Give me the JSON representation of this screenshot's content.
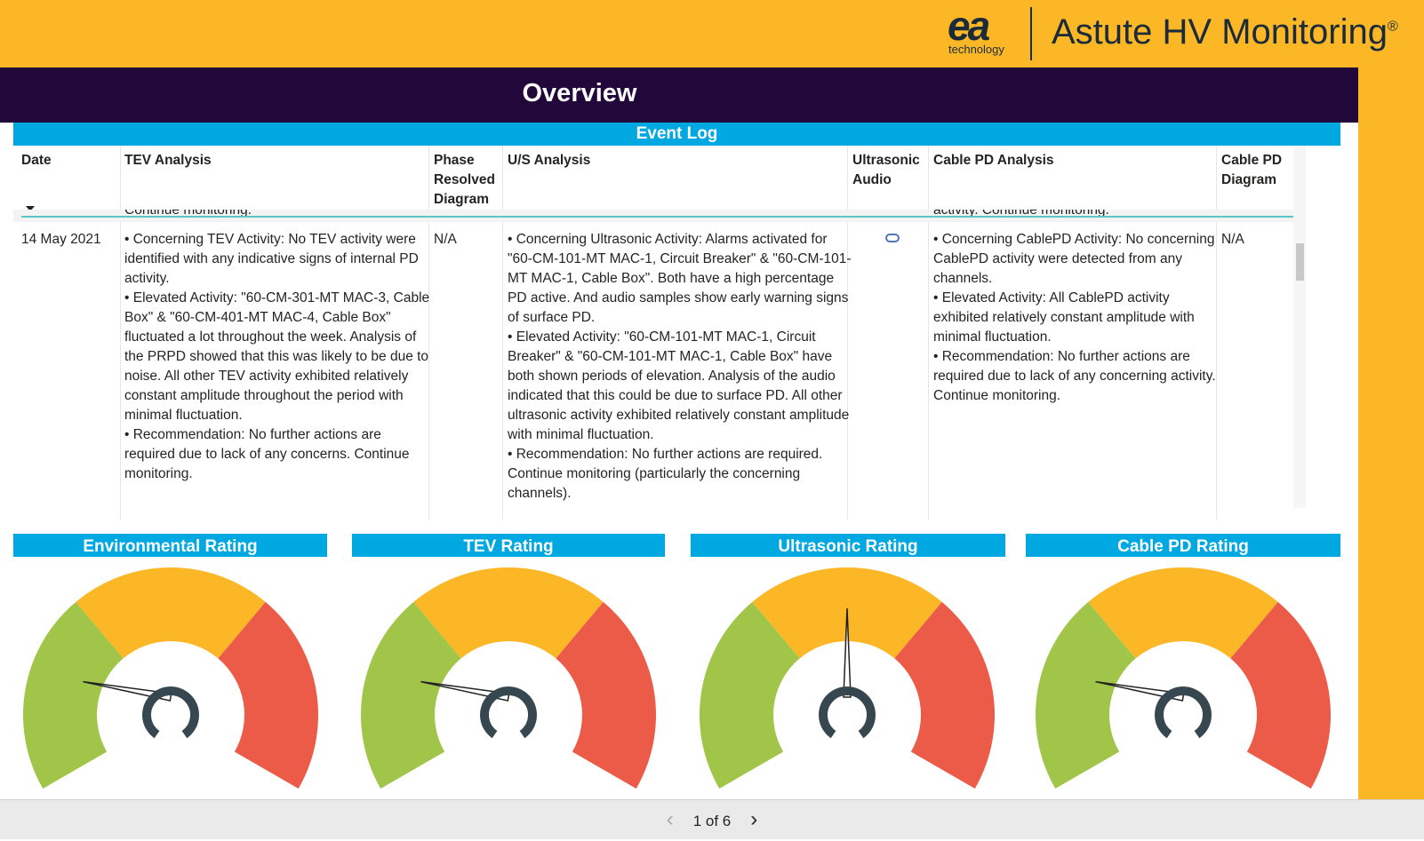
{
  "header": {
    "logo": "ea",
    "logo_sub": "technology",
    "product": "Astute HV Monitoring",
    "product_mark": "®"
  },
  "page": {
    "title": "Overview"
  },
  "event_log": {
    "title": "Event Log",
    "columns": [
      "Date",
      "TEV Analysis",
      "Phase Resolved Diagram",
      "U/S Analysis",
      "Ultrasonic Audio",
      "Cable PD Analysis",
      "Cable PD Diagram"
    ],
    "previous_row": {
      "tev": "Continue monitoring.",
      "cable": "activity. Continue monitoring."
    },
    "rows": [
      {
        "date": "14 May 2021",
        "tev": [
          "• Concerning TEV Activity: No TEV activity were identified with any indicative signs of internal PD activity.",
          "• Elevated Activity: \"60-CM-301-MT MAC-3, Cable Box\" & \"60-CM-401-MT MAC-4, Cable Box\" fluctuated a lot throughout the week. Analysis of the PRPD showed that this was likely to be due to noise. All other TEV activity exhibited relatively constant amplitude throughout the period with minimal fluctuation.",
          "• Recommendation: No further actions are required due to lack of any concerns. Continue monitoring."
        ],
        "phase": "N/A",
        "us": [
          "• Concerning Ultrasonic Activity: Alarms activated for \"60-CM-101-MT MAC-1, Circuit Breaker\" & \"60-CM-101-MT MAC-1, Cable Box\". Both have a high percentage PD active. And audio samples show early warning signs of surface PD.",
          "• Elevated Activity: \"60-CM-101-MT MAC-1, Circuit Breaker\" & \"60-CM-101-MT MAC-1, Cable Box\" have both shown periods of elevation. Analysis of the audio indicated that this could be due to surface PD. All other ultrasonic activity exhibited relatively constant amplitude with minimal fluctuation.",
          "• Recommendation: No further actions are required. Continue monitoring (particularly the concerning channels)."
        ],
        "cable": [
          "• Concerning CablePD Activity: No concerning CablePD activity were detected from any channels.",
          "• Elevated Activity: All CablePD activity exhibited relatively constant amplitude with minimal fluctuation.",
          "• Recommendation: No further actions are required due to lack of any concerning activity. Continue monitoring."
        ],
        "diagram": "N/A"
      }
    ]
  },
  "gauges": [
    {
      "title": "Environmental Rating"
    },
    {
      "title": "TEV Rating"
    },
    {
      "title": "Ultrasonic Rating"
    },
    {
      "title": "Cable PD Rating"
    }
  ],
  "pager": {
    "label": "1 of 6"
  }
}
